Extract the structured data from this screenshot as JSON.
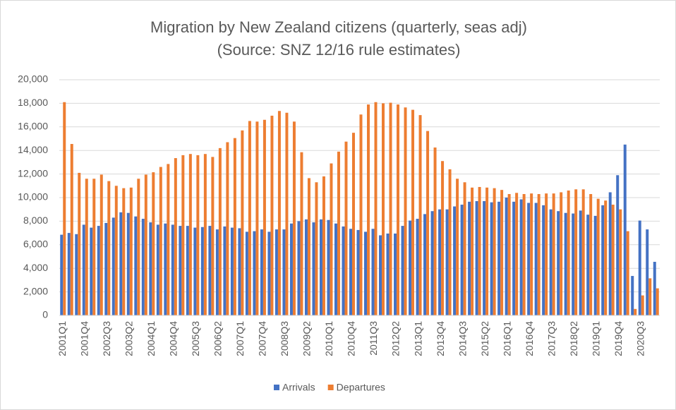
{
  "chart_data": {
    "type": "bar",
    "title": "Migration by New Zealand citizens (quarterly, seas adj)",
    "subtitle": "(Source: SNZ 12/16 rule estimates)",
    "categories": [
      "2001Q1",
      null,
      null,
      "2001Q4",
      null,
      null,
      "2002Q3",
      null,
      null,
      "2003Q2",
      null,
      null,
      "2004Q1",
      null,
      null,
      "2004Q4",
      null,
      null,
      "2005Q3",
      null,
      null,
      "2006Q2",
      null,
      null,
      "2007Q1",
      null,
      null,
      "2007Q4",
      null,
      null,
      "2008Q3",
      null,
      null,
      "2009Q2",
      null,
      null,
      "2010Q1",
      null,
      null,
      "2010Q4",
      null,
      null,
      "2011Q3",
      null,
      null,
      "2012Q2",
      null,
      null,
      "2013Q1",
      null,
      null,
      "2013Q4",
      null,
      null,
      "2014Q3",
      null,
      null,
      "2015Q2",
      null,
      null,
      "2016Q1",
      null,
      null,
      "2016Q4",
      null,
      null,
      "2017Q3",
      null,
      null,
      "2018Q2",
      null,
      null,
      "2019Q1",
      null,
      null,
      "2019Q4",
      null,
      null,
      "2020Q3",
      null,
      null
    ],
    "series": [
      {
        "name": "Arrivals",
        "color": "#4472c4",
        "values": [
          6850,
          7000,
          6900,
          7700,
          7450,
          7600,
          7850,
          8300,
          8750,
          8700,
          8400,
          8200,
          7900,
          7700,
          7800,
          7700,
          7600,
          7600,
          7450,
          7500,
          7600,
          7300,
          7550,
          7450,
          7400,
          7100,
          7150,
          7300,
          7100,
          7300,
          7300,
          7800,
          8000,
          8150,
          7900,
          8150,
          8100,
          7800,
          7550,
          7350,
          7250,
          7100,
          7350,
          6800,
          6950,
          6950,
          7600,
          8050,
          8200,
          8600,
          8850,
          9000,
          9000,
          9250,
          9400,
          9650,
          9700,
          9700,
          9600,
          9650,
          10000,
          9650,
          9850,
          9550,
          9550,
          9350,
          9000,
          8850,
          8700,
          8650,
          8900,
          8550,
          8450,
          9350,
          10450,
          11900,
          14500,
          3350,
          8050,
          7300,
          4550
        ]
      },
      {
        "name": "Departures",
        "color": "#ed7d31",
        "values": [
          18100,
          14550,
          12100,
          11600,
          11600,
          11950,
          11400,
          11000,
          10800,
          10850,
          11600,
          11950,
          12150,
          12600,
          12850,
          13350,
          13600,
          13700,
          13600,
          13700,
          13450,
          14200,
          14700,
          15050,
          15700,
          16500,
          16450,
          16600,
          16950,
          17350,
          17200,
          16450,
          13850,
          11650,
          11300,
          11800,
          12900,
          13900,
          14750,
          15500,
          17050,
          17900,
          18100,
          18000,
          18050,
          17900,
          17650,
          17450,
          17000,
          15650,
          14250,
          13100,
          12400,
          11600,
          11300,
          10850,
          10900,
          10850,
          10800,
          10650,
          10300,
          10400,
          10300,
          10350,
          10300,
          10350,
          10350,
          10450,
          10600,
          10700,
          10700,
          10300,
          9900,
          9750,
          9400,
          9000,
          7150,
          550,
          1700,
          3150,
          2300
        ]
      }
    ],
    "ylim": [
      0,
      20000
    ],
    "yticks": [
      0,
      {
        "value": 2000,
        "label": "2,000"
      },
      {
        "value": 4000,
        "label": "4,000"
      },
      {
        "value": 6000,
        "label": "6,000"
      },
      {
        "value": 8000,
        "label": "8,000"
      },
      {
        "value": 10000,
        "label": "10,000"
      },
      {
        "value": 12000,
        "label": "12,000"
      },
      {
        "value": 14000,
        "label": "14,000"
      },
      {
        "value": 16000,
        "label": "16,000"
      },
      {
        "value": 18000,
        "label": "18,000"
      },
      {
        "value": 20000,
        "label": "20,000"
      }
    ],
    "grid": true,
    "legend": "bottom"
  }
}
